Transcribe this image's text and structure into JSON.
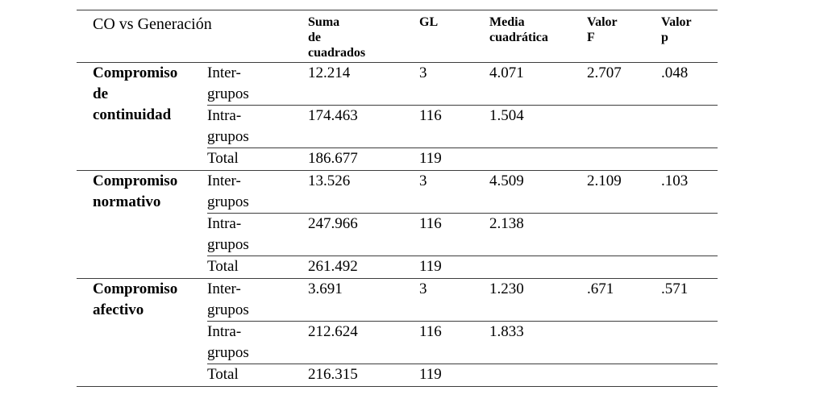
{
  "page": {
    "background_color": "#ffffff",
    "text_color": "#000000",
    "rule_color": "#3d3d3d"
  },
  "table": {
    "title_cell": "CO vs Generación",
    "headers": {
      "suma": "Suma\nde\ncuadrados",
      "gl": "GL",
      "media": "Media\ncuadrática",
      "valor_f": "Valor\nF",
      "valor_p": "Valor\np"
    },
    "groups": [
      {
        "name": "Compromiso\nde\ncontinuidad",
        "rows": [
          {
            "label": "Inter-\ngrupos",
            "suma": "12.214",
            "gl": "3",
            "media": "4.071",
            "valor_f": "2.707",
            "valor_p": ".048"
          },
          {
            "label": "Intra-\ngrupos",
            "suma": "174.463",
            "gl": "116",
            "media": "1.504",
            "valor_f": "",
            "valor_p": ""
          },
          {
            "label": "Total",
            "suma": "186.677",
            "gl": "119",
            "media": "",
            "valor_f": "",
            "valor_p": ""
          }
        ]
      },
      {
        "name": "Compromiso\nnormativo",
        "rows": [
          {
            "label": "Inter-\ngrupos",
            "suma": "13.526",
            "gl": "3",
            "media": "4.509",
            "valor_f": "2.109",
            "valor_p": ".103"
          },
          {
            "label": "Intra-\ngrupos",
            "suma": "247.966",
            "gl": "116",
            "media": "2.138",
            "valor_f": "",
            "valor_p": ""
          },
          {
            "label": "Total",
            "suma": "261.492",
            "gl": "119",
            "media": "",
            "valor_f": "",
            "valor_p": ""
          }
        ]
      },
      {
        "name": "Compromiso\nafectivo",
        "rows": [
          {
            "label": "Inter-\ngrupos",
            "suma": "3.691",
            "gl": "3",
            "media": "1.230",
            "valor_f": ".671",
            "valor_p": ".571"
          },
          {
            "label": "Intra-\ngrupos",
            "suma": "212.624",
            "gl": "116",
            "media": "1.833",
            "valor_f": "",
            "valor_p": ""
          },
          {
            "label": "Total",
            "suma": "216.315",
            "gl": "119",
            "media": "",
            "valor_f": "",
            "valor_p": ""
          }
        ]
      }
    ]
  }
}
